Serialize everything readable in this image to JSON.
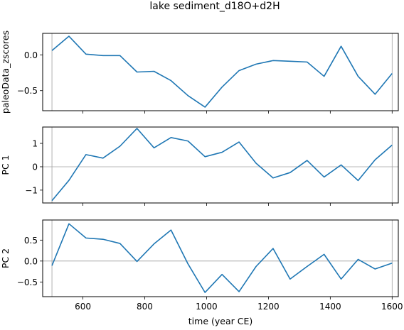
{
  "chart_data": {
    "type": "line",
    "title": "lake sediment_d18O+d2H",
    "xlabel": "time (year CE)",
    "xlim": [
      470,
      1620
    ],
    "xticks": [
      600,
      800,
      1000,
      1200,
      1400,
      1600
    ],
    "x_marker_lines": [
      500,
      1600
    ],
    "color": "#1f77b4",
    "x": [
      500,
      555,
      610,
      665,
      720,
      775,
      830,
      885,
      940,
      995,
      1050,
      1105,
      1160,
      1215,
      1270,
      1325,
      1380,
      1435,
      1490,
      1545,
      1600
    ],
    "panels": [
      {
        "ylabel": "paleoData_zscores",
        "ylim": [
          -0.78,
          0.3
        ],
        "yticks": [
          0.0,
          -0.5
        ],
        "ytick_labels": [
          "0.0",
          "−0.5"
        ],
        "zero_line": false,
        "values": [
          0.06,
          0.26,
          0.01,
          -0.01,
          -0.01,
          -0.24,
          -0.23,
          -0.36,
          -0.57,
          -0.73,
          -0.45,
          -0.22,
          -0.13,
          -0.08,
          -0.09,
          -0.1,
          -0.3,
          0.12,
          -0.3,
          -0.55,
          -0.26
        ]
      },
      {
        "ylabel": "PC 1",
        "ylim": [
          -1.55,
          1.7
        ],
        "yticks": [
          1,
          0,
          -1
        ],
        "ytick_labels": [
          "1",
          "0",
          "−1"
        ],
        "zero_line": true,
        "values": [
          -1.45,
          -0.58,
          0.52,
          0.37,
          0.88,
          1.64,
          0.81,
          1.25,
          1.1,
          0.43,
          0.62,
          1.06,
          0.15,
          -0.48,
          -0.25,
          0.27,
          -0.44,
          0.08,
          -0.59,
          0.3,
          0.93
        ]
      },
      {
        "ylabel": "PC 2",
        "ylim": [
          -0.85,
          0.98
        ],
        "yticks": [
          0.5,
          0.0,
          -0.5
        ],
        "ytick_labels": [
          "0.5",
          "0.0",
          "−0.5"
        ],
        "zero_line": true,
        "values": [
          -0.11,
          0.89,
          0.55,
          0.52,
          0.42,
          -0.01,
          0.41,
          0.74,
          -0.07,
          -0.75,
          -0.32,
          -0.73,
          -0.13,
          0.3,
          -0.43,
          -0.13,
          0.16,
          -0.43,
          0.04,
          -0.19,
          -0.05
        ]
      }
    ]
  }
}
